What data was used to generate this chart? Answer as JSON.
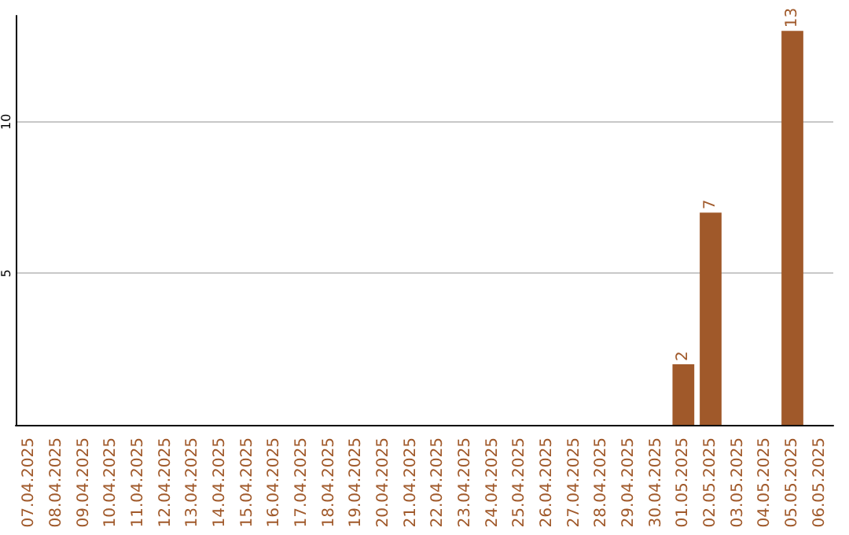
{
  "chart_data": {
    "type": "bar",
    "categories": [
      "07.04.2025",
      "08.04.2025",
      "09.04.2025",
      "10.04.2025",
      "11.04.2025",
      "12.04.2025",
      "13.04.2025",
      "14.04.2025",
      "15.04.2025",
      "16.04.2025",
      "17.04.2025",
      "18.04.2025",
      "19.04.2025",
      "20.04.2025",
      "21.04.2025",
      "22.04.2025",
      "23.04.2025",
      "24.04.2025",
      "25.04.2025",
      "26.04.2025",
      "27.04.2025",
      "28.04.2025",
      "29.04.2025",
      "30.04.2025",
      "01.05.2025",
      "02.05.2025",
      "03.05.2025",
      "04.05.2025",
      "05.05.2025",
      "06.05.2025"
    ],
    "values": [
      0,
      0,
      0,
      0,
      0,
      0,
      0,
      0,
      0,
      0,
      0,
      0,
      0,
      0,
      0,
      0,
      0,
      0,
      0,
      0,
      0,
      0,
      0,
      0,
      2,
      7,
      0,
      0,
      13,
      0
    ],
    "value_labels": [
      null,
      null,
      null,
      null,
      null,
      null,
      null,
      null,
      null,
      null,
      null,
      null,
      null,
      null,
      null,
      null,
      null,
      null,
      null,
      null,
      null,
      null,
      null,
      null,
      "2",
      "7",
      null,
      null,
      "13",
      null
    ],
    "color": "#a0592a",
    "ylim": [
      0,
      13.5
    ],
    "yticks": [
      5,
      10
    ],
    "grid": "y"
  }
}
